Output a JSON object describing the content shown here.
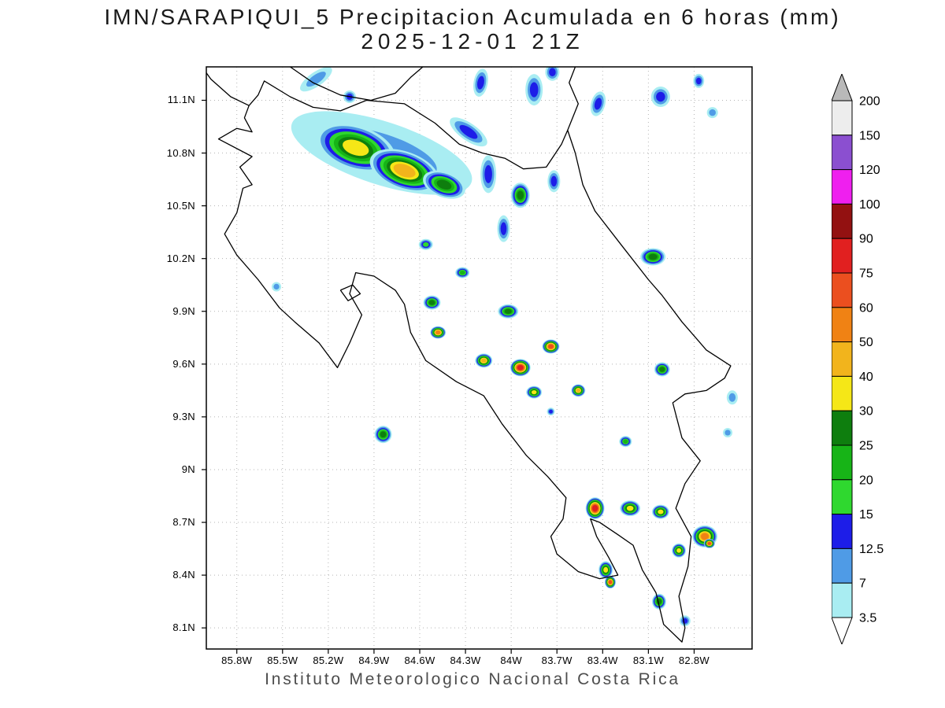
{
  "title": {
    "line1": "IMN/SARAPIQUI_5 Precipitacion Acumulada en 6 horas (mm)",
    "line2": "2025-12-01 21Z"
  },
  "footer": "Instituto Meteorologico Nacional Costa Rica",
  "chart_data": {
    "type": "heatmap",
    "title": "IMN/SARAPIQUI_5 Precipitacion Acumulada en 6 horas (mm)",
    "subtitle": "2025-12-01 21Z",
    "units": "mm",
    "grid": true,
    "projection": {
      "lon_west": 86.0,
      "lon_east": 82.42,
      "lat_north": 11.29,
      "lat_south": 7.98
    },
    "x_ticks": [
      {
        "lon": 85.8,
        "label": "85.8W"
      },
      {
        "lon": 85.5,
        "label": "85.5W"
      },
      {
        "lon": 85.2,
        "label": "85.2W"
      },
      {
        "lon": 84.9,
        "label": "84.9W"
      },
      {
        "lon": 84.6,
        "label": "84.6W"
      },
      {
        "lon": 84.3,
        "label": "84.3W"
      },
      {
        "lon": 84.0,
        "label": "84W"
      },
      {
        "lon": 83.7,
        "label": "83.7W"
      },
      {
        "lon": 83.4,
        "label": "83.4W"
      },
      {
        "lon": 83.1,
        "label": "83.1W"
      },
      {
        "lon": 82.8,
        "label": "82.8W"
      }
    ],
    "y_ticks": [
      {
        "lat": 11.1,
        "label": "11.1N"
      },
      {
        "lat": 10.8,
        "label": "10.8N"
      },
      {
        "lat": 10.5,
        "label": "10.5N"
      },
      {
        "lat": 10.2,
        "label": "10.2N"
      },
      {
        "lat": 9.9,
        "label": "9.9N"
      },
      {
        "lat": 9.6,
        "label": "9.6N"
      },
      {
        "lat": 9.3,
        "label": "9.3N"
      },
      {
        "lat": 9.0,
        "label": "9N"
      },
      {
        "lat": 8.7,
        "label": "8.7N"
      },
      {
        "lat": 8.4,
        "label": "8.4N"
      },
      {
        "lat": 8.1,
        "label": "8.1N"
      }
    ],
    "colorbar": {
      "top_label": "200",
      "arrow_top_color": "#b9b9b9",
      "arrow_bottom_color": "#ffffff",
      "bands": [
        {
          "label": "3.5",
          "min": 3.5,
          "color": "#a9edf2"
        },
        {
          "label": "7",
          "min": 7,
          "color": "#4f9be6"
        },
        {
          "label": "12.5",
          "min": 12.5,
          "color": "#1d1de8"
        },
        {
          "label": "15",
          "min": 15,
          "color": "#2fd82f"
        },
        {
          "label": "20",
          "min": 20,
          "color": "#17b417"
        },
        {
          "label": "25",
          "min": 25,
          "color": "#0e7e0e"
        },
        {
          "label": "30",
          "min": 30,
          "color": "#f5e717"
        },
        {
          "label": "40",
          "min": 40,
          "color": "#f2b41c"
        },
        {
          "label": "50",
          "min": 50,
          "color": "#f08214"
        },
        {
          "label": "60",
          "min": 60,
          "color": "#eb4f1f"
        },
        {
          "label": "75",
          "min": 75,
          "color": "#e12020"
        },
        {
          "label": "90",
          "min": 90,
          "color": "#931111"
        },
        {
          "label": "100",
          "min": 100,
          "color": "#ef1fef"
        },
        {
          "label": "120",
          "min": 120,
          "color": "#8b4fd0"
        },
        {
          "label": "150",
          "min": 150,
          "color": "#ededed"
        }
      ]
    },
    "coastlines": [
      [
        [
          85.72,
          11.07
        ],
        [
          85.66,
          11.13
        ],
        [
          85.62,
          11.21
        ],
        [
          85.45,
          11.12
        ],
        [
          85.3,
          11.06
        ],
        [
          85.12,
          11.04
        ],
        [
          84.95,
          11.1
        ],
        [
          84.7,
          11.08
        ],
        [
          84.5,
          10.97
        ],
        [
          84.34,
          10.85
        ],
        [
          84.19,
          10.8
        ],
        [
          84.04,
          10.77
        ],
        [
          83.92,
          10.71
        ],
        [
          83.77,
          10.72
        ],
        [
          83.67,
          10.85
        ],
        [
          83.63,
          10.93
        ],
        [
          83.58,
          10.8
        ],
        [
          83.53,
          10.62
        ],
        [
          83.45,
          10.47
        ],
        [
          83.28,
          10.28
        ],
        [
          83.1,
          10.08
        ],
        [
          83.01,
          9.99
        ],
        [
          82.88,
          9.84
        ],
        [
          82.72,
          9.68
        ],
        [
          82.56,
          9.59
        ],
        [
          82.6,
          9.52
        ],
        [
          82.72,
          9.45
        ],
        [
          82.86,
          9.43
        ],
        [
          82.94,
          9.38
        ],
        [
          82.88,
          9.18
        ],
        [
          82.76,
          9.05
        ],
        [
          82.86,
          8.92
        ],
        [
          82.92,
          8.78
        ],
        [
          82.82,
          8.62
        ],
        [
          82.84,
          8.45
        ],
        [
          82.9,
          8.28
        ],
        [
          82.86,
          8.1
        ],
        [
          82.88,
          8.02
        ],
        [
          83.0,
          8.12
        ],
        [
          83.05,
          8.3
        ],
        [
          83.14,
          8.43
        ],
        [
          83.2,
          8.57
        ],
        [
          83.3,
          8.63
        ],
        [
          83.42,
          8.7
        ],
        [
          83.48,
          8.72
        ],
        [
          83.44,
          8.62
        ],
        [
          83.36,
          8.5
        ],
        [
          83.3,
          8.4
        ],
        [
          83.42,
          8.38
        ],
        [
          83.56,
          8.42
        ],
        [
          83.7,
          8.52
        ],
        [
          83.74,
          8.62
        ],
        [
          83.66,
          8.72
        ],
        [
          83.64,
          8.84
        ],
        [
          83.76,
          8.96
        ],
        [
          83.9,
          9.08
        ],
        [
          84.06,
          9.26
        ],
        [
          84.18,
          9.42
        ],
        [
          84.36,
          9.5
        ],
        [
          84.56,
          9.62
        ],
        [
          84.66,
          9.78
        ],
        [
          84.7,
          9.94
        ],
        [
          84.76,
          10.02
        ],
        [
          84.9,
          10.1
        ],
        [
          85.02,
          10.12
        ],
        [
          85.06,
          10.0
        ],
        [
          84.98,
          9.88
        ],
        [
          85.06,
          9.72
        ],
        [
          85.14,
          9.58
        ],
        [
          85.26,
          9.72
        ],
        [
          85.42,
          9.84
        ],
        [
          85.52,
          9.92
        ],
        [
          85.66,
          10.08
        ],
        [
          85.8,
          10.22
        ],
        [
          85.88,
          10.34
        ],
        [
          85.8,
          10.46
        ],
        [
          85.76,
          10.6
        ],
        [
          85.7,
          10.62
        ],
        [
          85.78,
          10.72
        ],
        [
          85.7,
          10.78
        ],
        [
          85.92,
          10.88
        ],
        [
          85.8,
          10.94
        ],
        [
          85.7,
          10.92
        ],
        [
          85.75,
          11.0
        ],
        [
          85.72,
          11.07
        ]
      ],
      [
        [
          85.45,
          11.29
        ],
        [
          85.3,
          11.2
        ],
        [
          85.12,
          11.13
        ],
        [
          84.92,
          11.1
        ],
        [
          84.76,
          11.14
        ],
        [
          84.66,
          11.23
        ],
        [
          84.58,
          11.29
        ]
      ],
      [
        [
          83.63,
          10.93
        ],
        [
          83.56,
          11.08
        ],
        [
          83.62,
          11.2
        ],
        [
          83.58,
          11.29
        ]
      ],
      [
        [
          85.72,
          11.07
        ],
        [
          85.84,
          11.12
        ],
        [
          85.97,
          11.22
        ],
        [
          86.02,
          11.28
        ]
      ],
      [
        [
          85.12,
          10.02
        ],
        [
          85.04,
          10.05
        ],
        [
          84.99,
          10.0
        ],
        [
          85.07,
          9.96
        ],
        [
          85.12,
          10.02
        ]
      ]
    ],
    "cells": [
      {
        "lon": 84.85,
        "lat": 10.8,
        "rx": 120,
        "ry": 40,
        "rot": 18,
        "max": 7
      },
      {
        "lon": 85.02,
        "lat": 10.83,
        "rx": 52,
        "ry": 28,
        "rot": 18,
        "max": 30
      },
      {
        "lon": 84.7,
        "lat": 10.7,
        "rx": 46,
        "ry": 24,
        "rot": 20,
        "max": 40
      },
      {
        "lon": 84.44,
        "lat": 10.62,
        "rx": 28,
        "ry": 16,
        "rot": 20,
        "max": 25
      },
      {
        "lon": 83.94,
        "lat": 10.56,
        "rx": 12,
        "ry": 16,
        "rot": 0,
        "max": 25
      },
      {
        "lon": 84.15,
        "lat": 10.68,
        "rx": 10,
        "ry": 24,
        "rot": 0,
        "max": 12.5
      },
      {
        "lon": 84.28,
        "lat": 10.92,
        "rx": 28,
        "ry": 11,
        "rot": 35,
        "max": 12.5
      },
      {
        "lon": 83.72,
        "lat": 10.64,
        "rx": 8,
        "ry": 14,
        "rot": 0,
        "max": 12.5
      },
      {
        "lon": 85.28,
        "lat": 11.22,
        "rx": 24,
        "ry": 9,
        "rot": -35,
        "max": 7
      },
      {
        "lon": 85.06,
        "lat": 11.12,
        "rx": 8,
        "ry": 8,
        "rot": 0,
        "max": 12.5
      },
      {
        "lon": 84.2,
        "lat": 11.2,
        "rx": 9,
        "ry": 18,
        "rot": 10,
        "max": 12.5
      },
      {
        "lon": 83.85,
        "lat": 11.16,
        "rx": 11,
        "ry": 20,
        "rot": 0,
        "max": 12.5
      },
      {
        "lon": 83.73,
        "lat": 11.26,
        "rx": 9,
        "ry": 11,
        "rot": 0,
        "max": 12.5
      },
      {
        "lon": 83.43,
        "lat": 11.08,
        "rx": 9,
        "ry": 16,
        "rot": 15,
        "max": 12.5
      },
      {
        "lon": 83.02,
        "lat": 11.12,
        "rx": 12,
        "ry": 13,
        "rot": 0,
        "max": 12.5
      },
      {
        "lon": 82.77,
        "lat": 11.21,
        "rx": 7,
        "ry": 9,
        "rot": 0,
        "max": 12.5
      },
      {
        "lon": 82.68,
        "lat": 11.03,
        "rx": 7,
        "ry": 7,
        "rot": 0,
        "max": 7
      },
      {
        "lon": 84.05,
        "lat": 10.37,
        "rx": 8,
        "ry": 17,
        "rot": 0,
        "max": 12.5
      },
      {
        "lon": 84.56,
        "lat": 10.28,
        "rx": 9,
        "ry": 7,
        "rot": 0,
        "max": 15
      },
      {
        "lon": 83.07,
        "lat": 10.21,
        "rx": 16,
        "ry": 11,
        "rot": 0,
        "max": 25
      },
      {
        "lon": 85.54,
        "lat": 10.04,
        "rx": 6,
        "ry": 6,
        "rot": 0,
        "max": 7
      },
      {
        "lon": 84.32,
        "lat": 10.12,
        "rx": 9,
        "ry": 7,
        "rot": 0,
        "max": 20
      },
      {
        "lon": 84.52,
        "lat": 9.95,
        "rx": 11,
        "ry": 9,
        "rot": 0,
        "max": 25
      },
      {
        "lon": 84.02,
        "lat": 9.9,
        "rx": 13,
        "ry": 9,
        "rot": 0,
        "max": 25
      },
      {
        "lon": 84.48,
        "lat": 9.78,
        "rx": 10,
        "ry": 8,
        "rot": 0,
        "max": 50
      },
      {
        "lon": 84.18,
        "lat": 9.62,
        "rx": 11,
        "ry": 9,
        "rot": 0,
        "max": 40
      },
      {
        "lon": 83.94,
        "lat": 9.58,
        "rx": 13,
        "ry": 11,
        "rot": 0,
        "max": 75
      },
      {
        "lon": 83.74,
        "lat": 9.7,
        "rx": 11,
        "ry": 9,
        "rot": 0,
        "max": 60
      },
      {
        "lon": 83.85,
        "lat": 9.44,
        "rx": 10,
        "ry": 8,
        "rot": 0,
        "max": 30
      },
      {
        "lon": 83.56,
        "lat": 9.45,
        "rx": 9,
        "ry": 8,
        "rot": 0,
        "max": 40
      },
      {
        "lon": 83.74,
        "lat": 9.33,
        "rx": 5,
        "ry": 5,
        "rot": 0,
        "max": 12.5
      },
      {
        "lon": 83.01,
        "lat": 9.57,
        "rx": 10,
        "ry": 9,
        "rot": 0,
        "max": 25
      },
      {
        "lon": 82.55,
        "lat": 9.41,
        "rx": 7,
        "ry": 9,
        "rot": 0,
        "max": 7
      },
      {
        "lon": 82.58,
        "lat": 9.21,
        "rx": 6,
        "ry": 6,
        "rot": 0,
        "max": 7
      },
      {
        "lon": 84.84,
        "lat": 9.2,
        "rx": 11,
        "ry": 11,
        "rot": 0,
        "max": 25
      },
      {
        "lon": 83.25,
        "lat": 9.16,
        "rx": 8,
        "ry": 7,
        "rot": 0,
        "max": 20
      },
      {
        "lon": 83.45,
        "lat": 8.78,
        "rx": 12,
        "ry": 14,
        "rot": 0,
        "max": 75
      },
      {
        "lon": 83.22,
        "lat": 8.78,
        "rx": 13,
        "ry": 10,
        "rot": 0,
        "max": 30
      },
      {
        "lon": 83.02,
        "lat": 8.76,
        "rx": 11,
        "ry": 9,
        "rot": 0,
        "max": 30
      },
      {
        "lon": 82.73,
        "lat": 8.62,
        "rx": 16,
        "ry": 14,
        "rot": 0,
        "max": 50
      },
      {
        "lon": 82.7,
        "lat": 8.58,
        "rx": 7,
        "ry": 6,
        "rot": 0,
        "max": 60
      },
      {
        "lon": 82.9,
        "lat": 8.54,
        "rx": 9,
        "ry": 9,
        "rot": 0,
        "max": 30
      },
      {
        "lon": 83.38,
        "lat": 8.43,
        "rx": 9,
        "ry": 11,
        "rot": 0,
        "max": 30
      },
      {
        "lon": 83.35,
        "lat": 8.36,
        "rx": 7,
        "ry": 8,
        "rot": 0,
        "max": 60
      },
      {
        "lon": 83.03,
        "lat": 8.25,
        "rx": 9,
        "ry": 10,
        "rot": 0,
        "max": 25
      },
      {
        "lon": 82.86,
        "lat": 8.14,
        "rx": 7,
        "ry": 7,
        "rot": 0,
        "max": 12.5
      }
    ]
  }
}
